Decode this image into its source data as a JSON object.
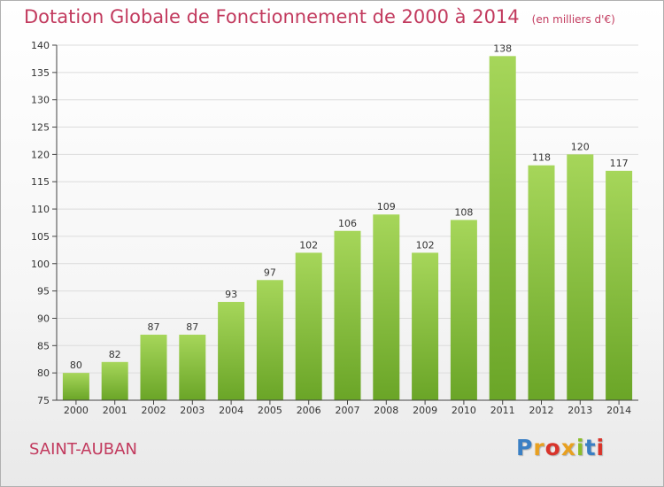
{
  "title": "Dotation Globale de Fonctionnement de 2000 à 2014",
  "subtitle": "(en milliers d'€)",
  "city": "SAINT-AUBAN",
  "logo": {
    "text": "Proxiti",
    "colors": [
      "#3a7fc4",
      "#e8a020",
      "#d9342b",
      "#e8a020",
      "#8bbd2a",
      "#3a7fc4",
      "#d9342b"
    ]
  },
  "colors": {
    "title": "#c23a5e",
    "bar_top": "#a6d65a",
    "bar_bottom": "#6aa527"
  },
  "chart_data": {
    "type": "bar",
    "categories": [
      "2000",
      "2001",
      "2002",
      "2003",
      "2004",
      "2005",
      "2006",
      "2007",
      "2008",
      "2009",
      "2010",
      "2011",
      "2012",
      "2013",
      "2014"
    ],
    "values": [
      80,
      82,
      87,
      87,
      93,
      97,
      102,
      106,
      109,
      102,
      108,
      138,
      118,
      120,
      117
    ],
    "title": "Dotation Globale de Fonctionnement de 2000 à 2014",
    "subtitle": "(en milliers d'€)",
    "xlabel": "",
    "ylabel": "",
    "ylim": [
      75,
      140
    ],
    "yticks": [
      75,
      80,
      85,
      90,
      95,
      100,
      105,
      110,
      115,
      120,
      125,
      130,
      135,
      140
    ],
    "grid": true,
    "data_labels": true
  }
}
